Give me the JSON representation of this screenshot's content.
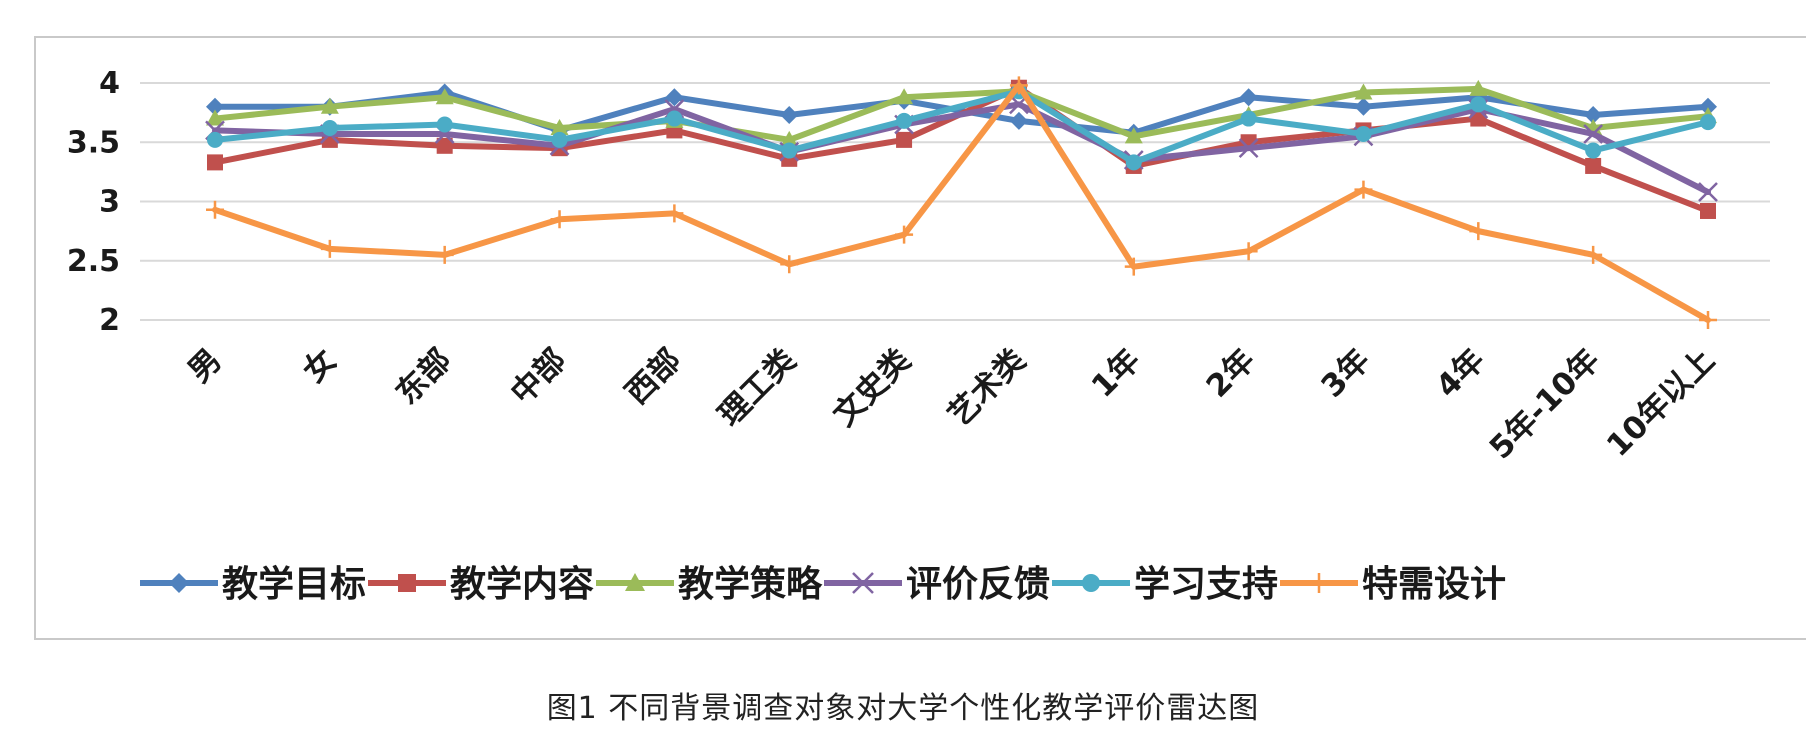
{
  "caption": "图1  不同背景调查对象对大学个性化教学评价雷达图",
  "chart_data": {
    "type": "line",
    "categories": [
      "男",
      "女",
      "东部",
      "中部",
      "西部",
      "理工类",
      "文史类",
      "艺术类",
      "1年",
      "2年",
      "3年",
      "4年",
      "5年-10年",
      "10年以上"
    ],
    "ylim": [
      2,
      4
    ],
    "yticks": [
      "4",
      "3.5",
      "3",
      "2.5",
      "2"
    ],
    "grid": true,
    "legend_position": "bottom",
    "series": [
      {
        "name": "教学目标",
        "color": "#4F81BD",
        "marker": "diamond",
        "values": [
          3.8,
          3.8,
          3.92,
          3.6,
          3.88,
          3.73,
          3.85,
          3.68,
          3.58,
          3.88,
          3.8,
          3.88,
          3.73,
          3.8
        ]
      },
      {
        "name": "教学内容",
        "color": "#C0504D",
        "marker": "square",
        "values": [
          3.33,
          3.52,
          3.47,
          3.45,
          3.6,
          3.36,
          3.52,
          3.96,
          3.3,
          3.5,
          3.6,
          3.7,
          3.3,
          2.92
        ]
      },
      {
        "name": "教学策略",
        "color": "#9BBB59",
        "marker": "triangle",
        "values": [
          3.7,
          3.8,
          3.88,
          3.62,
          3.68,
          3.52,
          3.88,
          3.93,
          3.55,
          3.73,
          3.92,
          3.95,
          3.62,
          3.72
        ]
      },
      {
        "name": "评价反馈",
        "color": "#8064A2",
        "marker": "x",
        "values": [
          3.6,
          3.57,
          3.57,
          3.47,
          3.78,
          3.42,
          3.65,
          3.82,
          3.35,
          3.45,
          3.55,
          3.78,
          3.57,
          3.08
        ]
      },
      {
        "name": "学习支持",
        "color": "#4BACC6",
        "marker": "circle",
        "values": [
          3.52,
          3.62,
          3.65,
          3.52,
          3.7,
          3.43,
          3.68,
          3.93,
          3.33,
          3.7,
          3.57,
          3.82,
          3.43,
          3.67
        ]
      },
      {
        "name": "特需设计",
        "color": "#F79646",
        "marker": "plus",
        "values": [
          2.93,
          2.6,
          2.55,
          2.85,
          2.9,
          2.47,
          2.72,
          3.98,
          2.45,
          2.58,
          3.1,
          2.75,
          2.55,
          2.0
        ]
      }
    ]
  }
}
